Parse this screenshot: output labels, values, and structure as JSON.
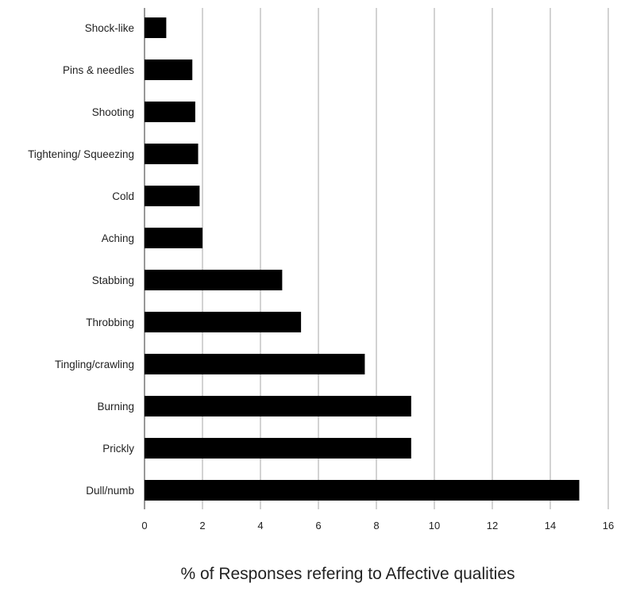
{
  "chart_data": {
    "type": "bar",
    "orientation": "horizontal",
    "categories": [
      "Shock-like",
      "Pins & needles",
      "Shooting",
      "Tightening/ Squeezing",
      "Cold",
      "Aching",
      "Stabbing",
      "Throbbing",
      "Tingling/crawling",
      "Burning",
      "Prickly",
      "Dull/numb"
    ],
    "values": [
      0.75,
      1.65,
      1.75,
      1.85,
      1.9,
      2.0,
      4.75,
      5.4,
      7.6,
      9.2,
      9.2,
      15.0
    ],
    "title": "",
    "xlabel": "% of Responses refering to Affective qualities",
    "ylabel": "",
    "xlim": [
      0,
      16
    ],
    "xticks": [
      "0",
      "2",
      "4",
      "6",
      "8",
      "10",
      "12",
      "14",
      "16"
    ],
    "grid": "vertical",
    "legend": "none",
    "bar_color": "#000000",
    "grid_color": "#bbbbbb"
  }
}
